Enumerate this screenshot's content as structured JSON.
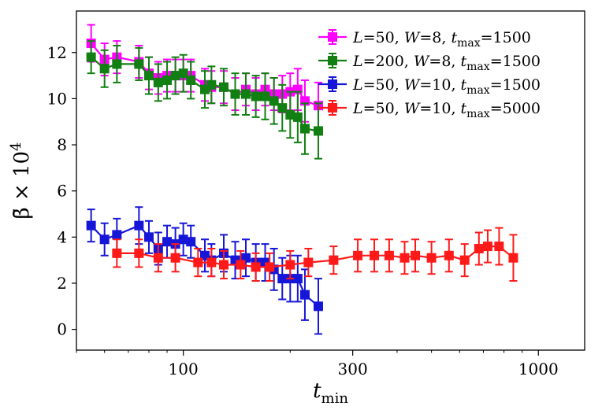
{
  "chart_data": {
    "type": "line",
    "title": "",
    "xlabel": "t_min",
    "ylabel": "β̄ × 10^4",
    "x_scale": "log",
    "xlim": [
      50,
      1350
    ],
    "ylim": [
      -0.9,
      13.8
    ],
    "x_ticks": [
      100,
      300,
      1000
    ],
    "x_tick_labels": [
      "100",
      "300",
      "1000"
    ],
    "y_ticks": [
      0,
      2,
      4,
      6,
      8,
      10,
      12
    ],
    "y_tick_labels": [
      "0",
      "2",
      "4",
      "6",
      "8",
      "10",
      "12"
    ],
    "legend_position": "top-right",
    "series": [
      {
        "name": "L=50, W=8, t_max=1500",
        "color": "#ff00ff",
        "x": [
          55,
          60,
          65,
          75,
          80,
          85,
          90,
          95,
          100,
          105,
          115,
          120,
          130,
          140,
          150,
          160,
          170,
          180,
          190,
          200,
          210,
          220,
          240
        ],
        "y": [
          12.4,
          11.7,
          11.8,
          11.6,
          11.1,
          10.9,
          11.0,
          11.0,
          11.0,
          11.0,
          10.6,
          10.5,
          10.5,
          10.2,
          10.4,
          10.2,
          10.4,
          10.2,
          10.2,
          10.3,
          10.4,
          9.9,
          9.7
        ],
        "err": [
          0.8,
          0.7,
          0.7,
          0.7,
          0.7,
          0.7,
          0.7,
          0.7,
          0.7,
          0.7,
          0.7,
          0.7,
          0.7,
          0.7,
          0.7,
          0.7,
          0.7,
          0.7,
          0.8,
          0.8,
          0.9,
          0.9,
          1.0
        ]
      },
      {
        "name": "L=200, W=8, t_max=1500",
        "color": "#117f11",
        "x": [
          55,
          60,
          65,
          75,
          80,
          85,
          90,
          95,
          100,
          105,
          115,
          120,
          130,
          140,
          150,
          160,
          170,
          180,
          190,
          200,
          210,
          220,
          240
        ],
        "y": [
          11.8,
          11.3,
          11.5,
          11.5,
          11.0,
          10.7,
          10.8,
          11.0,
          11.1,
          10.8,
          10.4,
          10.6,
          10.5,
          10.2,
          10.2,
          10.1,
          10.1,
          9.9,
          9.6,
          9.3,
          9.2,
          8.7,
          8.6
        ],
        "err": [
          0.7,
          0.8,
          0.8,
          0.7,
          0.8,
          0.8,
          0.8,
          0.8,
          0.8,
          0.8,
          0.8,
          0.8,
          0.8,
          0.9,
          0.9,
          0.9,
          1.0,
          1.0,
          1.0,
          1.0,
          1.1,
          1.1,
          1.2
        ]
      },
      {
        "name": "L=50, W=10, t_max=1500",
        "color": "#1616d8",
        "x": [
          55,
          60,
          65,
          75,
          80,
          85,
          90,
          95,
          100,
          105,
          115,
          120,
          130,
          140,
          150,
          160,
          170,
          180,
          190,
          200,
          210,
          220,
          240
        ],
        "y": [
          4.5,
          3.9,
          4.1,
          4.5,
          4.0,
          3.5,
          3.8,
          3.7,
          3.9,
          3.8,
          3.2,
          3.0,
          3.3,
          3.0,
          3.1,
          2.9,
          2.9,
          2.6,
          2.2,
          2.2,
          2.2,
          1.5,
          1.0
        ],
        "err": [
          0.7,
          0.7,
          0.7,
          0.8,
          0.7,
          0.7,
          0.7,
          0.7,
          0.7,
          0.7,
          0.7,
          0.7,
          0.8,
          0.8,
          0.8,
          0.8,
          0.8,
          0.9,
          0.9,
          1.0,
          1.0,
          1.1,
          1.2
        ]
      },
      {
        "name": "L=50, W=10, t_max=5000",
        "color": "#ff1a1a",
        "x": [
          65,
          75,
          85,
          95,
          110,
          120,
          130,
          145,
          160,
          175,
          200,
          225,
          265,
          310,
          345,
          380,
          420,
          450,
          500,
          560,
          620,
          680,
          720,
          775,
          850
        ],
        "y": [
          3.3,
          3.3,
          3.1,
          3.1,
          2.9,
          2.9,
          2.8,
          2.8,
          2.7,
          2.7,
          2.8,
          2.9,
          3.0,
          3.2,
          3.2,
          3.2,
          3.1,
          3.2,
          3.1,
          3.2,
          3.0,
          3.5,
          3.6,
          3.6,
          3.1
        ],
        "err": [
          0.6,
          0.6,
          0.6,
          0.6,
          0.6,
          0.6,
          0.6,
          0.6,
          0.6,
          0.6,
          0.6,
          0.6,
          0.6,
          0.7,
          0.7,
          0.7,
          0.7,
          0.7,
          0.7,
          0.7,
          0.7,
          0.7,
          0.7,
          0.8,
          1.0
        ]
      }
    ]
  }
}
